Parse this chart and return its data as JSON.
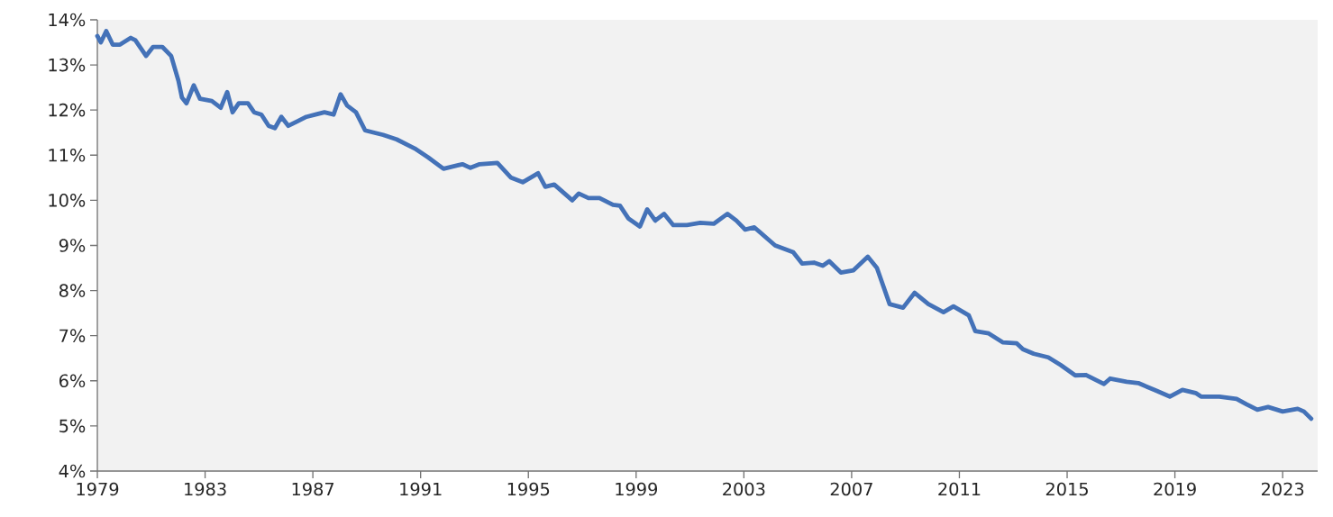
{
  "chart_data": {
    "type": "line",
    "line_style": "solid",
    "marker": "none",
    "grid": false,
    "xlim": [
      1979,
      2024.3
    ],
    "xticks": [
      1979,
      1983,
      1987,
      1991,
      1995,
      1999,
      2003,
      2007,
      2011,
      2015,
      2019,
      2023
    ],
    "ylim": [
      4,
      14
    ],
    "yticks": [
      {
        "value": 4,
        "label": "4%"
      },
      {
        "value": 5,
        "label": "5%"
      },
      {
        "value": 6,
        "label": "6%"
      },
      {
        "value": 7,
        "label": "7%"
      },
      {
        "value": 8,
        "label": "8%"
      },
      {
        "value": 9,
        "label": "9%"
      },
      {
        "value": 10,
        "label": "10%"
      },
      {
        "value": 11,
        "label": "11%"
      },
      {
        "value": 12,
        "label": "12%"
      },
      {
        "value": 13,
        "label": "13%"
      },
      {
        "value": 14,
        "label": "14%"
      }
    ],
    "series": [
      {
        "color": "#4472b8",
        "x": [
          1979.0,
          1979.13,
          1979.33,
          1979.57,
          1979.84,
          1980.24,
          1980.41,
          1980.81,
          1981.07,
          1981.41,
          1981.74,
          1982.01,
          1982.14,
          1982.31,
          1982.58,
          1982.81,
          1983.25,
          1983.58,
          1983.82,
          1984.02,
          1984.25,
          1984.59,
          1984.82,
          1985.09,
          1985.36,
          1985.59,
          1985.83,
          1986.09,
          1986.43,
          1986.76,
          1987.1,
          1987.43,
          1987.77,
          1988.03,
          1988.27,
          1988.6,
          1988.94,
          1989.27,
          1989.61,
          1990.11,
          1990.78,
          1991.28,
          1991.85,
          1992.55,
          1992.85,
          1993.19,
          1993.85,
          1994.36,
          1994.79,
          1995.36,
          1995.63,
          1995.96,
          1996.63,
          1996.87,
          1997.23,
          1997.64,
          1998.14,
          1998.4,
          1998.71,
          1999.14,
          1999.41,
          1999.71,
          2000.04,
          2000.38,
          2000.88,
          2001.38,
          2001.88,
          2002.39,
          2002.72,
          2003.05,
          2003.39,
          2004.16,
          2004.83,
          2005.16,
          2005.6,
          2005.93,
          2006.17,
          2006.6,
          2007.07,
          2007.6,
          2007.94,
          2008.41,
          2008.91,
          2009.34,
          2009.85,
          2010.41,
          2010.78,
          2011.35,
          2011.59,
          2012.09,
          2012.62,
          2013.13,
          2013.36,
          2013.76,
          2014.3,
          2014.76,
          2015.3,
          2015.7,
          2016.37,
          2016.6,
          2017.21,
          2017.64,
          2018.31,
          2018.81,
          2019.28,
          2019.77,
          2019.97,
          2020.65,
          2021.29,
          2021.66,
          2022.06,
          2022.46,
          2023.0,
          2023.56,
          2023.79,
          2024.06
        ],
        "values": [
          13.64,
          13.5,
          13.75,
          13.45,
          13.45,
          13.6,
          13.55,
          13.2,
          13.4,
          13.4,
          13.2,
          12.65,
          12.28,
          12.15,
          12.55,
          12.25,
          12.2,
          12.05,
          12.4,
          11.95,
          12.15,
          12.15,
          11.95,
          11.9,
          11.65,
          11.6,
          11.85,
          11.65,
          11.75,
          11.85,
          11.9,
          11.95,
          11.9,
          12.35,
          12.1,
          11.95,
          11.55,
          11.5,
          11.45,
          11.35,
          11.15,
          10.95,
          10.7,
          10.8,
          10.72,
          10.8,
          10.83,
          10.5,
          10.4,
          10.6,
          10.3,
          10.35,
          10.0,
          10.15,
          10.05,
          10.05,
          9.9,
          9.88,
          9.6,
          9.42,
          9.8,
          9.55,
          9.7,
          9.45,
          9.45,
          9.5,
          9.48,
          9.7,
          9.55,
          9.35,
          9.4,
          9.0,
          8.85,
          8.6,
          8.62,
          8.55,
          8.65,
          8.4,
          8.45,
          8.75,
          8.5,
          7.7,
          7.62,
          7.95,
          7.7,
          7.52,
          7.65,
          7.45,
          7.1,
          7.05,
          6.85,
          6.83,
          6.7,
          6.6,
          6.52,
          6.35,
          6.12,
          6.13,
          5.93,
          6.05,
          5.98,
          5.95,
          5.78,
          5.65,
          5.8,
          5.73,
          5.65,
          5.65,
          5.6,
          5.48,
          5.36,
          5.42,
          5.32,
          5.38,
          5.32,
          5.16
        ]
      }
    ]
  }
}
